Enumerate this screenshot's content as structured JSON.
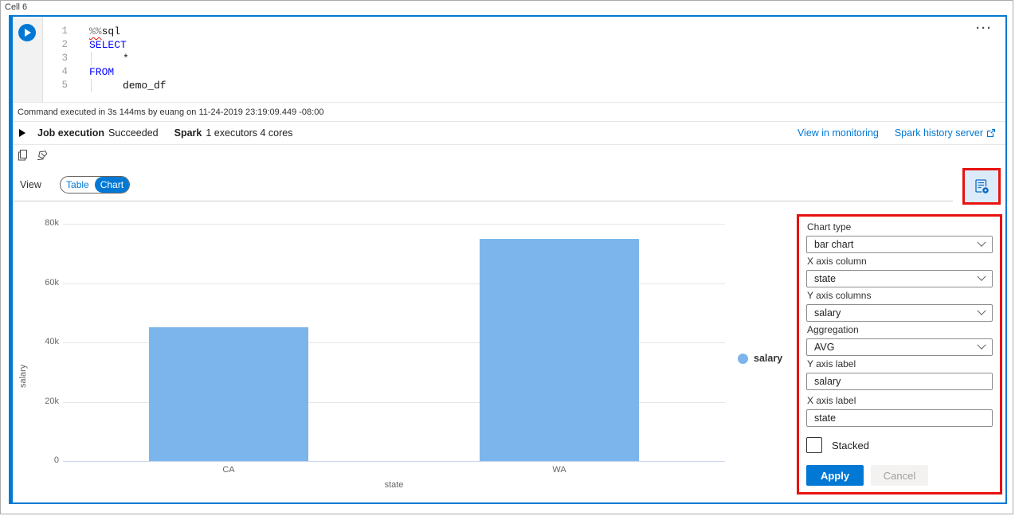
{
  "window": {
    "cell_label": "Cell 6",
    "ellipsis": "···"
  },
  "editor": {
    "line_numbers": [
      "1",
      "2",
      "3",
      "4",
      "5"
    ],
    "magic_prefix": "%%",
    "magic_rest": "sql",
    "kw_select": "SELECT",
    "star": "*",
    "kw_from": "FROM",
    "table_name": "demo_df"
  },
  "status": {
    "command_text": "Command executed in 3s 144ms by euang on 11-24-2019 23:19:09.449 -08:00"
  },
  "job": {
    "label": "Job execution",
    "status": "Succeeded",
    "spark_label": "Spark",
    "spark_info": "1 executors 4 cores",
    "link_monitoring": "View in monitoring",
    "link_history": "Spark history server"
  },
  "view_bar": {
    "label": "View",
    "table": "Table",
    "chart": "Chart"
  },
  "chart_data": {
    "type": "bar",
    "categories": [
      "CA",
      "WA"
    ],
    "series": [
      {
        "name": "salary",
        "values": [
          45000,
          75000
        ]
      }
    ],
    "title": "",
    "xlabel": "state",
    "ylabel": "salary",
    "ylim": [
      0,
      80000
    ],
    "ytick_values": [
      0,
      20000,
      40000,
      60000,
      80000
    ],
    "ytick_labels": [
      "0",
      "20k",
      "40k",
      "60k",
      "80k"
    ],
    "grid": true,
    "legend_position": "right",
    "bar_color": "#7cb5ec"
  },
  "panel": {
    "fields": [
      {
        "label": "Chart type",
        "value": "bar chart",
        "type": "select"
      },
      {
        "label": "X axis column",
        "value": "state",
        "type": "select"
      },
      {
        "label": "Y axis columns",
        "value": "salary",
        "type": "select"
      },
      {
        "label": "Aggregation",
        "value": "AVG",
        "type": "select"
      },
      {
        "label": "Y axis label",
        "value": "salary",
        "type": "input"
      },
      {
        "label": "X axis label",
        "value": "state",
        "type": "input"
      }
    ],
    "stacked_label": "Stacked",
    "stacked_checked": false,
    "apply_label": "Apply",
    "cancel_label": "Cancel"
  },
  "colors": {
    "accent": "#0078d4",
    "bar": "#7cb5ec",
    "highlight": "#e8120f",
    "keyword": "#0000ff"
  }
}
